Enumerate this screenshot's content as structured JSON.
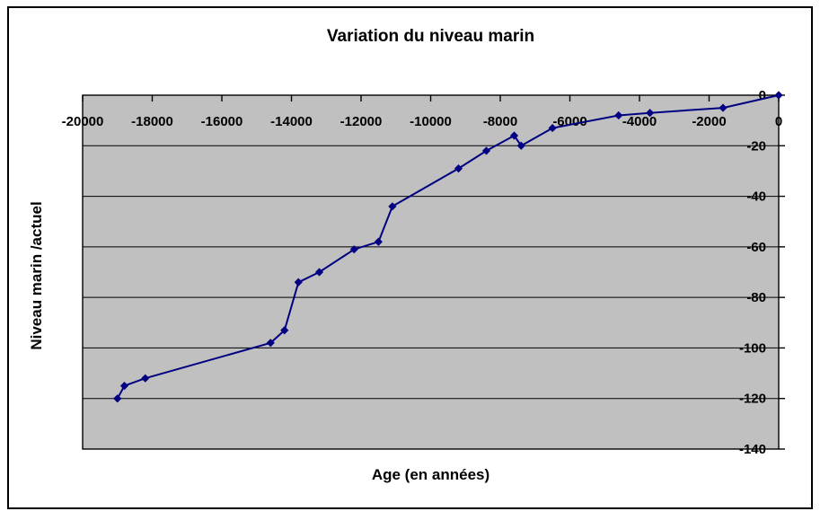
{
  "chart_data": {
    "type": "line",
    "title": "Variation du niveau marin",
    "xlabel": "Age (en années)",
    "ylabel": "Niveau marin /actuel",
    "xlim": [
      -20000,
      0
    ],
    "ylim": [
      -140,
      0
    ],
    "x_ticks": [
      -20000,
      -18000,
      -16000,
      -14000,
      -12000,
      -10000,
      -8000,
      -6000,
      -4000,
      -2000,
      0
    ],
    "y_ticks": [
      0,
      -20,
      -40,
      -60,
      -80,
      -100,
      -120,
      -140
    ],
    "grid": "horizontal-only",
    "legend_position": "none",
    "x_axis_position": "top",
    "y_axis_position": "right",
    "series": [
      {
        "marker": "diamond",
        "color": "#000080",
        "points": [
          [
            -19000,
            -120
          ],
          [
            -18800,
            -115
          ],
          [
            -18200,
            -112
          ],
          [
            -14600,
            -98
          ],
          [
            -14200,
            -93
          ],
          [
            -13800,
            -74
          ],
          [
            -13200,
            -70
          ],
          [
            -12200,
            -61
          ],
          [
            -11500,
            -58
          ],
          [
            -11100,
            -44
          ],
          [
            -9200,
            -29
          ],
          [
            -8400,
            -22
          ],
          [
            -7600,
            -16
          ],
          [
            -7400,
            -20
          ],
          [
            -6500,
            -13
          ],
          [
            -4600,
            -8
          ],
          [
            -3700,
            -7
          ],
          [
            -1600,
            -5
          ],
          [
            0,
            0
          ]
        ]
      }
    ],
    "colors": {
      "plot_background": "#C0C0C0",
      "gridline": "#000000",
      "series_line": "#000080",
      "text": "#000000",
      "chart_background": "#FFFFFF"
    }
  }
}
